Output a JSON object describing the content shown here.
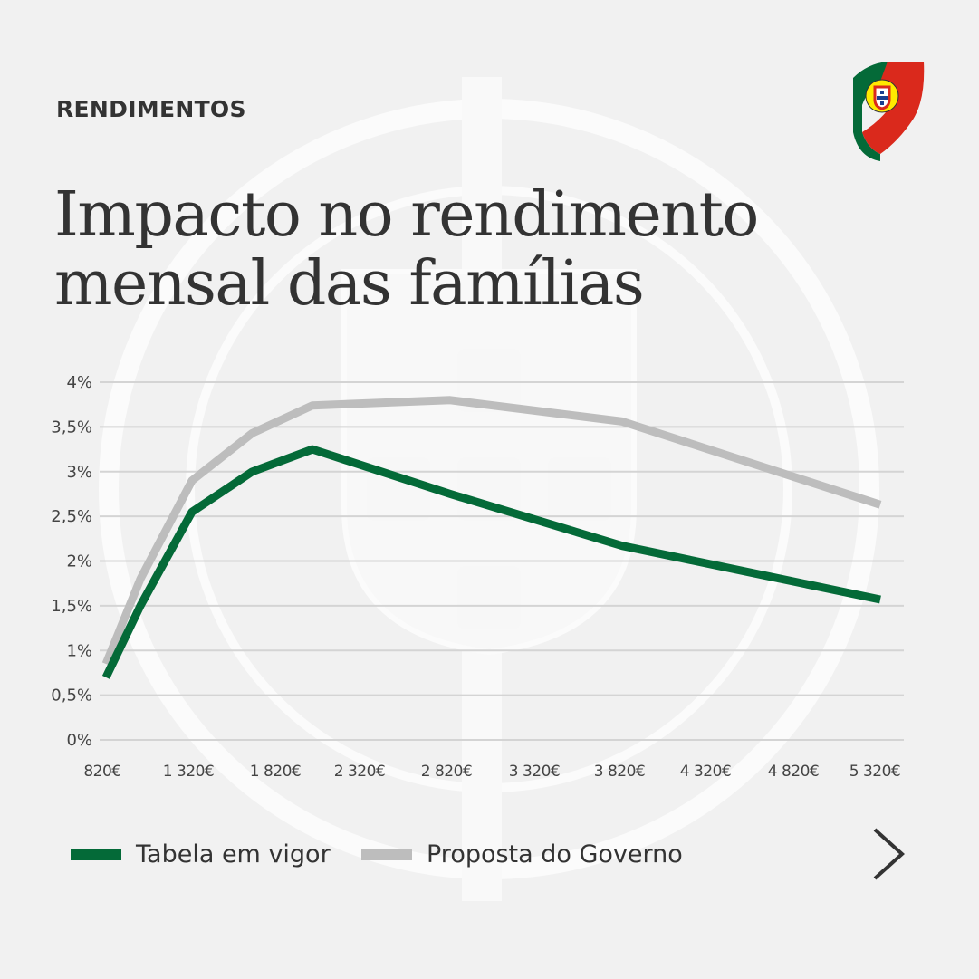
{
  "header": {
    "category": "RENDIMENTOS",
    "title_line1": "Impacto no rendimento",
    "title_line2": "mensal das famílias"
  },
  "logo": {
    "icon": "portugal-government-flag-logo-icon",
    "colors": [
      "#046a38",
      "#da291c",
      "#ffe900"
    ]
  },
  "nav": {
    "next_icon": "chevron-right-icon"
  },
  "colors": {
    "tabela": "#046a38",
    "proposta": "#bdbdbd",
    "grid": "#d4d4d4",
    "text": "#333333"
  },
  "chart_data": {
    "type": "line",
    "title": "Impacto no rendimento mensal das famílias",
    "xlabel": "",
    "ylabel": "",
    "x_ticks": [
      "820€",
      "1 320€",
      "1 820€",
      "2 320€",
      "2 820€",
      "3 320€",
      "3 820€",
      "4 320€",
      "4 820€",
      "5 320€"
    ],
    "y_ticks": [
      "0%",
      "0,5%",
      "1%",
      "1,5%",
      "2%",
      "2,5%",
      "3%",
      "3,5%",
      "4%"
    ],
    "xlim": [
      820,
      5320
    ],
    "ylim": [
      0,
      4
    ],
    "grid": true,
    "legend_position": "bottom-left",
    "series": [
      {
        "name": "Tabela em vigor",
        "color": "#046a38",
        "x": [
          820,
          1020,
          1320,
          1670,
          2020,
          2820,
          3820,
          5320
        ],
        "y": [
          0.7,
          1.5,
          2.55,
          3.0,
          3.25,
          2.75,
          2.17,
          1.57
        ]
      },
      {
        "name": "Proposta do Governo",
        "color": "#bdbdbd",
        "x": [
          820,
          1020,
          1320,
          1670,
          2020,
          2820,
          3820,
          5320
        ],
        "y": [
          0.85,
          1.8,
          2.9,
          3.43,
          3.74,
          3.8,
          3.56,
          2.63
        ]
      }
    ]
  }
}
